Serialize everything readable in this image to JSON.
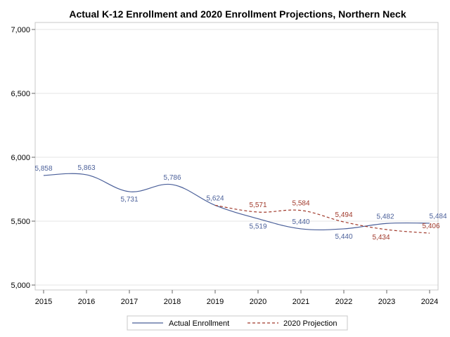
{
  "chart_data": {
    "type": "line",
    "title": "Actual K-12 Enrollment and 2020 Enrollment Projections, Northern Neck",
    "xlabel": "",
    "ylabel": "",
    "x": [
      2015,
      2016,
      2017,
      2018,
      2019,
      2020,
      2021,
      2022,
      2023,
      2024
    ],
    "xlim": [
      2015,
      2024
    ],
    "ylim": [
      5000,
      7000
    ],
    "yticks": [
      5000,
      5500,
      6000,
      6500,
      7000
    ],
    "ytick_labels": [
      "5,000",
      "5,500",
      "6,000",
      "6,500",
      "7,000"
    ],
    "xtick_labels": [
      "2015",
      "2016",
      "2017",
      "2018",
      "2019",
      "2020",
      "2021",
      "2022",
      "2023",
      "2024"
    ],
    "grid": "horizontal",
    "legend_position": "bottom",
    "series": [
      {
        "name": "Actual Enrollment",
        "color": "#4a5f99",
        "style": "solid",
        "x": [
          2015,
          2016,
          2017,
          2018,
          2019,
          2020,
          2021,
          2022,
          2023,
          2024
        ],
        "values": [
          5858,
          5863,
          5731,
          5786,
          5624,
          5519,
          5440,
          5440,
          5482,
          5484
        ],
        "labels": [
          "5,858",
          "5,863",
          "5,731",
          "5,786",
          "5,624",
          "5,519",
          "5,440",
          "5,440",
          "5,482",
          "5,484"
        ]
      },
      {
        "name": "2020 Projection",
        "color": "#a0392b",
        "style": "dashed",
        "x": [
          2019,
          2020,
          2021,
          2022,
          2023,
          2024
        ],
        "values": [
          5624,
          5571,
          5584,
          5494,
          5434,
          5406
        ],
        "labels": [
          "",
          "5,571",
          "5,584",
          "5,494",
          "5,434",
          "5,406"
        ]
      }
    ]
  }
}
